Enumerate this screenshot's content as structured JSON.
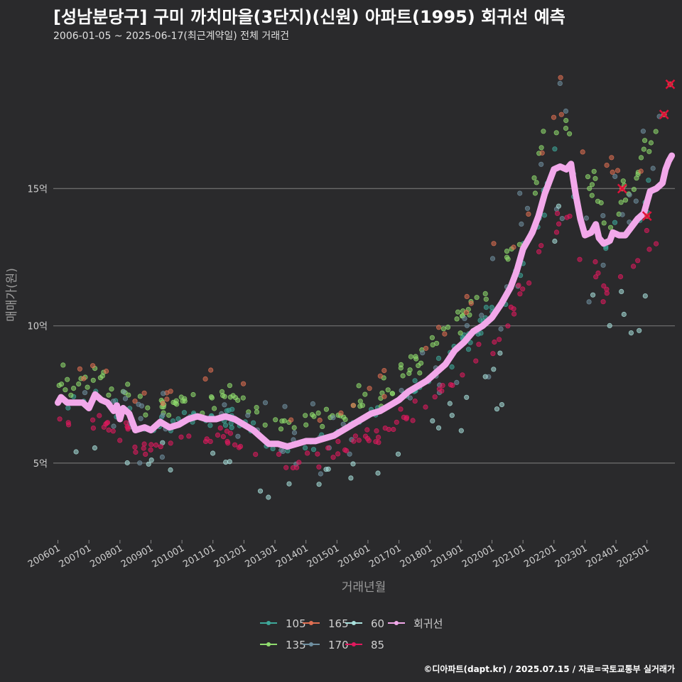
{
  "title": "[성남분당구] 구미 까치마을(3단지)(신원) 아파트(1995) 회귀선 예측",
  "subtitle": "2006-01-05 ~ 2025-06-17(최근계약일) 전체 거래건",
  "credit": "©디아파트(dapt.kr) / 2025.07.15 / 자료=국토교통부 실거래가",
  "chart_data": {
    "type": "scatter",
    "xlabel": "거래년월",
    "ylabel": "매매가(원)",
    "x_range": [
      2005.85,
      2025.9
    ],
    "y_range": [
      2.2,
      19.8
    ],
    "x_ticks": [
      "200601",
      "200701",
      "200801",
      "200901",
      "201001",
      "201101",
      "201201",
      "201301",
      "201401",
      "201501",
      "201601",
      "201701",
      "201801",
      "201901",
      "202001",
      "202101",
      "202201",
      "202301",
      "202401",
      "202501"
    ],
    "y_ticks": [
      {
        "value": 5,
        "label": "5억"
      },
      {
        "value": 10,
        "label": "10억"
      },
      {
        "value": 15,
        "label": "15억"
      }
    ],
    "grid": "horizontal",
    "legend_position": "bottom",
    "series": [
      {
        "name": "105",
        "color": "#3ea89a",
        "offset": 0.0,
        "spread": 0.35,
        "density": 3
      },
      {
        "name": "135",
        "color": "#8fdc6e",
        "offset": 0.9,
        "spread": 0.5,
        "density": 4
      },
      {
        "name": "165",
        "color": "#e06f52",
        "offset": 1.4,
        "spread": 0.6,
        "density": 1
      },
      {
        "name": "170",
        "color": "#6f8fa0",
        "offset": 0.2,
        "spread": 1.4,
        "density": 2
      },
      {
        "name": "60",
        "color": "#a8e0dc",
        "offset": -1.8,
        "spread": 0.8,
        "density": 1
      },
      {
        "name": "85",
        "color": "#e0195e",
        "offset": -0.9,
        "spread": 0.35,
        "density": 3
      }
    ],
    "regression": {
      "name": "회귀선",
      "color": "#f2a8ea",
      "points": [
        [
          2006.0,
          7.2
        ],
        [
          2006.1,
          7.4
        ],
        [
          2006.3,
          7.2
        ],
        [
          2006.8,
          7.2
        ],
        [
          2007.0,
          7.0
        ],
        [
          2007.2,
          7.5
        ],
        [
          2007.4,
          7.3
        ],
        [
          2007.6,
          7.2
        ],
        [
          2007.8,
          6.9
        ],
        [
          2007.9,
          7.1
        ],
        [
          2008.0,
          6.6
        ],
        [
          2008.1,
          7.0
        ],
        [
          2008.3,
          6.8
        ],
        [
          2008.5,
          6.2
        ],
        [
          2008.8,
          6.3
        ],
        [
          2009.0,
          6.2
        ],
        [
          2009.3,
          6.5
        ],
        [
          2009.6,
          6.3
        ],
        [
          2009.9,
          6.4
        ],
        [
          2010.2,
          6.6
        ],
        [
          2010.5,
          6.7
        ],
        [
          2010.8,
          6.6
        ],
        [
          2011.1,
          6.6
        ],
        [
          2011.4,
          6.7
        ],
        [
          2011.7,
          6.6
        ],
        [
          2012.0,
          6.4
        ],
        [
          2012.3,
          6.2
        ],
        [
          2012.5,
          6.0
        ],
        [
          2012.8,
          5.7
        ],
        [
          2013.1,
          5.7
        ],
        [
          2013.4,
          5.6
        ],
        [
          2013.7,
          5.7
        ],
        [
          2014.0,
          5.8
        ],
        [
          2014.3,
          5.8
        ],
        [
          2014.6,
          5.9
        ],
        [
          2014.9,
          6.0
        ],
        [
          2015.2,
          6.2
        ],
        [
          2015.5,
          6.4
        ],
        [
          2015.8,
          6.6
        ],
        [
          2016.1,
          6.8
        ],
        [
          2016.4,
          6.9
        ],
        [
          2016.7,
          7.1
        ],
        [
          2017.0,
          7.3
        ],
        [
          2017.3,
          7.6
        ],
        [
          2017.6,
          7.8
        ],
        [
          2017.9,
          8.0
        ],
        [
          2018.2,
          8.3
        ],
        [
          2018.5,
          8.6
        ],
        [
          2018.8,
          9.1
        ],
        [
          2019.1,
          9.4
        ],
        [
          2019.4,
          9.8
        ],
        [
          2019.7,
          10.0
        ],
        [
          2020.0,
          10.3
        ],
        [
          2020.3,
          10.8
        ],
        [
          2020.6,
          11.4
        ],
        [
          2020.8,
          12.0
        ],
        [
          2021.0,
          12.8
        ],
        [
          2021.3,
          13.4
        ],
        [
          2021.5,
          14.0
        ],
        [
          2021.7,
          14.8
        ],
        [
          2021.9,
          15.4
        ],
        [
          2022.0,
          15.7
        ],
        [
          2022.2,
          15.8
        ],
        [
          2022.4,
          15.7
        ],
        [
          2022.55,
          15.9
        ],
        [
          2022.6,
          15.5
        ],
        [
          2022.7,
          14.8
        ],
        [
          2022.85,
          13.9
        ],
        [
          2023.0,
          13.3
        ],
        [
          2023.2,
          13.4
        ],
        [
          2023.35,
          13.7
        ],
        [
          2023.45,
          13.2
        ],
        [
          2023.6,
          13.0
        ],
        [
          2023.8,
          13.1
        ],
        [
          2023.9,
          13.4
        ],
        [
          2024.1,
          13.3
        ],
        [
          2024.3,
          13.3
        ],
        [
          2024.5,
          13.6
        ],
        [
          2024.7,
          13.9
        ],
        [
          2024.9,
          14.1
        ],
        [
          2025.0,
          14.5
        ],
        [
          2025.1,
          14.9
        ],
        [
          2025.3,
          15.0
        ],
        [
          2025.5,
          15.2
        ],
        [
          2025.6,
          15.7
        ],
        [
          2025.7,
          16.0
        ],
        [
          2025.8,
          16.2
        ]
      ]
    },
    "predictions": [
      {
        "x": 2024.2,
        "y": 15.0
      },
      {
        "x": 2025.0,
        "y": 14.0
      },
      {
        "x": 2025.55,
        "y": 17.7
      },
      {
        "x": 2025.75,
        "y": 18.8
      }
    ]
  }
}
